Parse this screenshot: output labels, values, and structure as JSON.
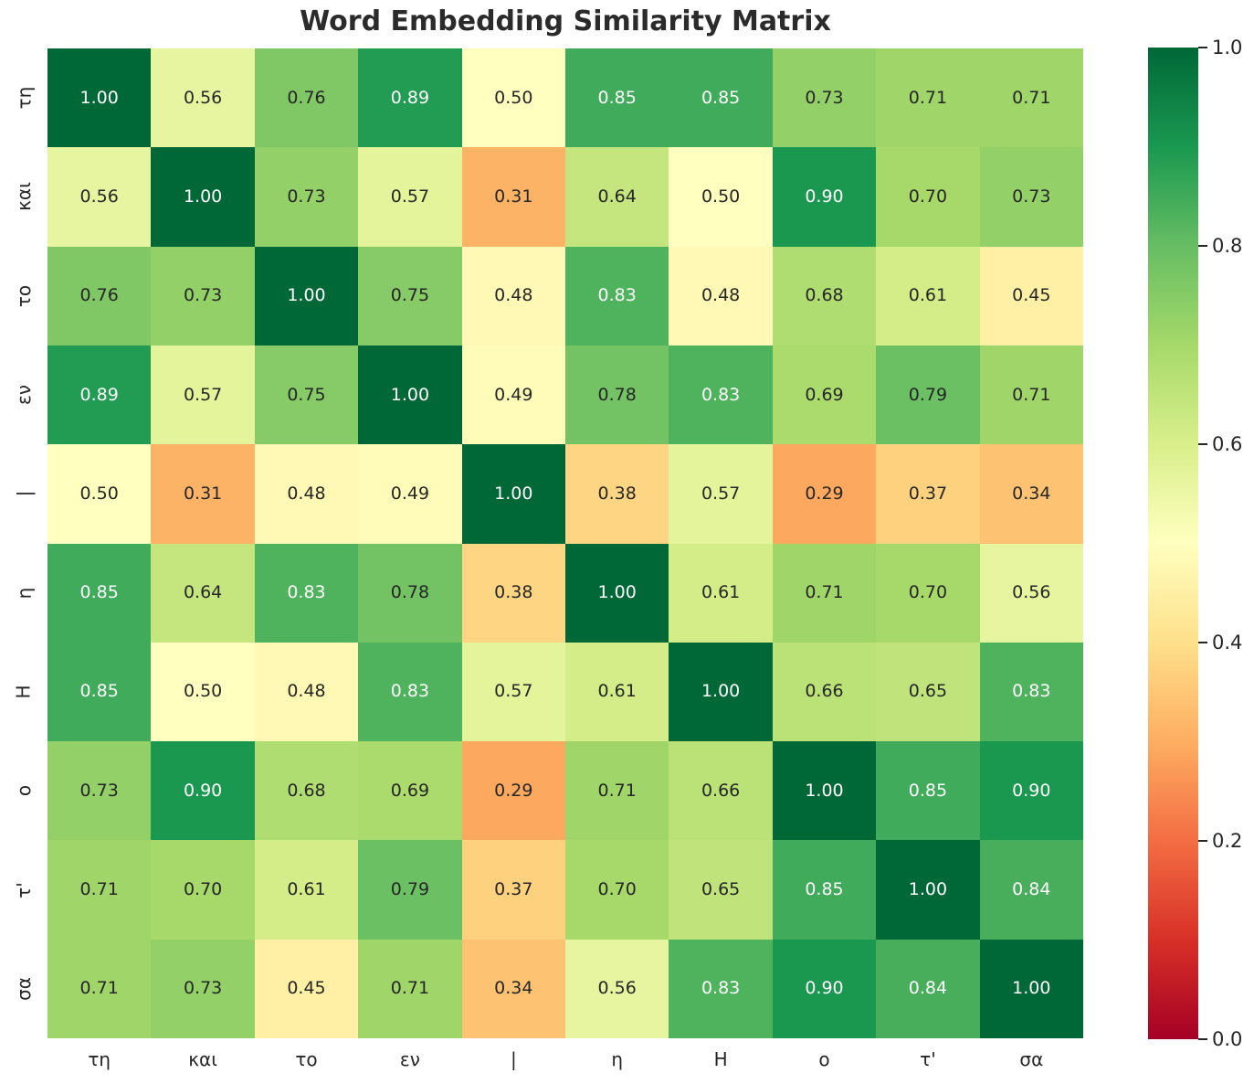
{
  "title": "Word Embedding Similarity Matrix",
  "chart_data": {
    "type": "heatmap",
    "title": "Word Embedding Similarity Matrix",
    "x_labels": [
      "τη",
      "και",
      "το",
      "εν",
      "|",
      "η",
      "Η",
      "ο",
      "τ'",
      "σα"
    ],
    "y_labels": [
      "τη",
      "και",
      "το",
      "εν",
      "|",
      "η",
      "Η",
      "ο",
      "τ'",
      "σα"
    ],
    "matrix": [
      [
        1.0,
        0.56,
        0.76,
        0.89,
        0.5,
        0.85,
        0.85,
        0.73,
        0.71,
        0.71
      ],
      [
        0.56,
        1.0,
        0.73,
        0.57,
        0.31,
        0.64,
        0.5,
        0.9,
        0.7,
        0.73
      ],
      [
        0.76,
        0.73,
        1.0,
        0.75,
        0.48,
        0.83,
        0.48,
        0.68,
        0.61,
        0.45
      ],
      [
        0.89,
        0.57,
        0.75,
        1.0,
        0.49,
        0.78,
        0.83,
        0.69,
        0.79,
        0.71
      ],
      [
        0.5,
        0.31,
        0.48,
        0.49,
        1.0,
        0.38,
        0.57,
        0.29,
        0.37,
        0.34
      ],
      [
        0.85,
        0.64,
        0.83,
        0.78,
        0.38,
        1.0,
        0.61,
        0.71,
        0.7,
        0.56
      ],
      [
        0.85,
        0.5,
        0.48,
        0.83,
        0.57,
        0.61,
        1.0,
        0.66,
        0.65,
        0.83
      ],
      [
        0.73,
        0.9,
        0.68,
        0.69,
        0.29,
        0.71,
        0.66,
        1.0,
        0.85,
        0.9
      ],
      [
        0.71,
        0.7,
        0.61,
        0.79,
        0.37,
        0.7,
        0.65,
        0.85,
        1.0,
        0.84
      ],
      [
        0.71,
        0.73,
        0.45,
        0.71,
        0.34,
        0.56,
        0.83,
        0.9,
        0.84,
        1.0
      ]
    ],
    "value_decimals": 2,
    "value_range": [
      0.0,
      1.0
    ],
    "colormap": "RdYlGn",
    "colormap_stops": [
      "#a50026",
      "#d73027",
      "#f46d43",
      "#fdae61",
      "#fee08b",
      "#ffffbf",
      "#d9ef8b",
      "#a6d96a",
      "#66bd63",
      "#1a9850",
      "#006837"
    ],
    "colorbar_tick_labels": [
      "1.0",
      "0.8",
      "0.6",
      "0.4",
      "0.2",
      "0.0"
    ],
    "colorbar_tick_values": [
      1.0,
      0.8,
      0.6,
      0.4,
      0.2,
      0.0
    ],
    "colorbar_position": "right",
    "grid": false,
    "annot_color_dark": "#262626",
    "annot_color_light": "#ffffff",
    "white_text_threshold": 0.805
  }
}
